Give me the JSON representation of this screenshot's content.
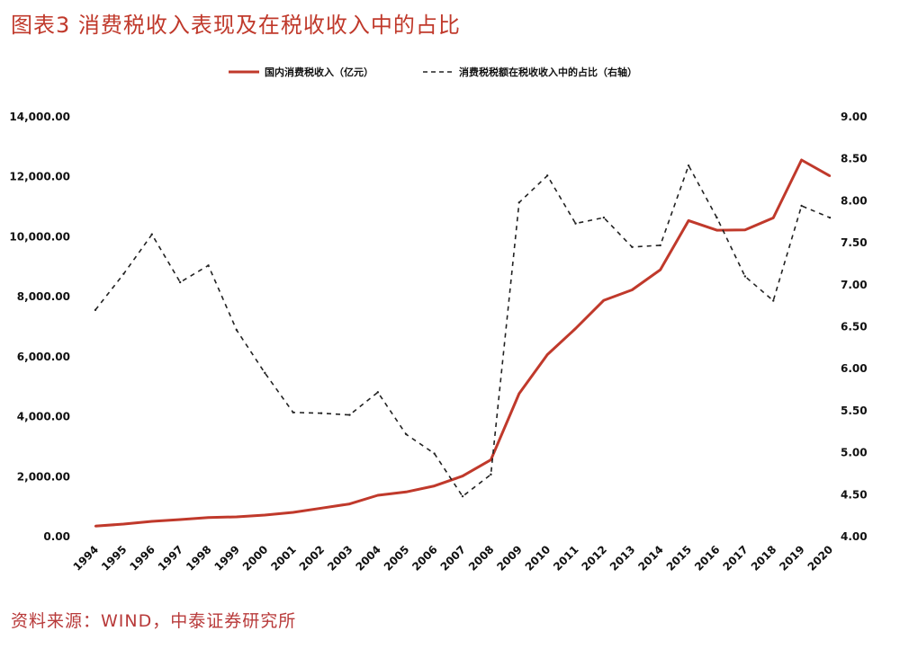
{
  "title": "图表3 消费税收入表现及在税收收入中的占比",
  "source": "资料来源：WIND，中泰证券研究所",
  "chart_data": {
    "type": "line",
    "title": "图表3 消费税收入表现及在税收收入中的占比",
    "x": [
      "1994",
      "1995",
      "1996",
      "1997",
      "1998",
      "1999",
      "2000",
      "2001",
      "2002",
      "2003",
      "2004",
      "2005",
      "2006",
      "2007",
      "2008",
      "2009",
      "2010",
      "2011",
      "2012",
      "2013",
      "2014",
      "2015",
      "2016",
      "2017",
      "2018",
      "2019",
      "2020"
    ],
    "left_axis": {
      "min": 0,
      "max": 14000,
      "ticks": [
        "0.00",
        "2,000.00",
        "4,000.00",
        "6,000.00",
        "8,000.00",
        "10,000.00",
        "12,000.00",
        "14,000.00"
      ]
    },
    "right_axis": {
      "min": 4.0,
      "max": 9.0,
      "ticks": [
        "4.00",
        "4.50",
        "5.00",
        "5.50",
        "6.00",
        "6.50",
        "7.00",
        "7.50",
        "8.00",
        "8.50",
        "9.00"
      ]
    },
    "legend_placement": "top",
    "grid": false,
    "series": [
      {
        "name": "国内消费税收入（亿元）",
        "axis": "left",
        "style": "solid",
        "color": "#c0392b",
        "values": [
          350,
          420,
          510,
          570,
          640,
          660,
          720,
          810,
          950,
          1090,
          1380,
          1490,
          1690,
          2020,
          2560,
          4770,
          6070,
          6940,
          7880,
          8230,
          8900,
          10540,
          10220,
          10230,
          10630,
          12560,
          12030
        ]
      },
      {
        "name": "消费税税额在税收收入中的占比（右轴）",
        "axis": "right",
        "style": "dashed",
        "color": "#222222",
        "values": [
          6.7,
          7.13,
          7.6,
          7.03,
          7.23,
          6.46,
          5.95,
          5.48,
          5.47,
          5.45,
          5.72,
          5.22,
          4.99,
          4.48,
          4.74,
          7.98,
          8.3,
          7.73,
          7.8,
          7.45,
          7.47,
          8.42,
          7.8,
          7.1,
          6.81,
          7.94,
          7.8
        ]
      }
    ]
  }
}
